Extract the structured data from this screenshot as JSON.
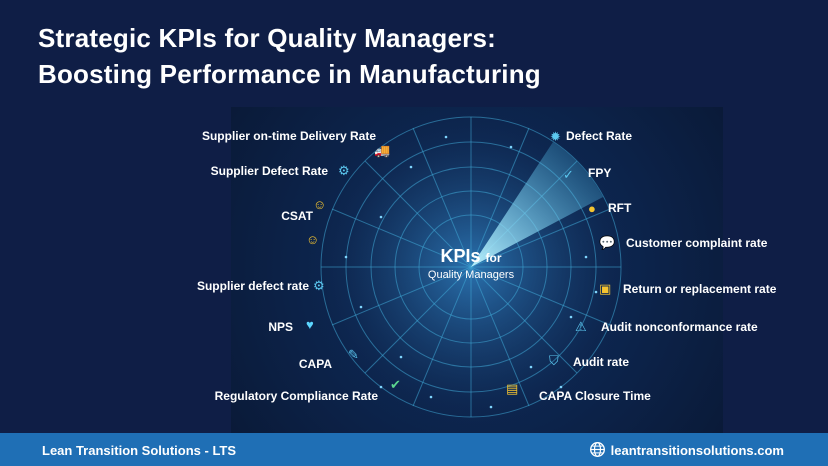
{
  "title": {
    "line1": "Strategic KPIs for Quality Managers:",
    "line2": "Boosting Performance in Manufacturing"
  },
  "center": {
    "line1": "KPIs",
    "line1b": "for",
    "line2": "Quality Managers"
  },
  "left_kpis": [
    {
      "label": "Supplier on-time Delivery Rate",
      "icon": "truck-icon"
    },
    {
      "label": "Supplier Defect Rate",
      "icon": "gear-icon"
    },
    {
      "label": "CSAT",
      "icon": "smiley-icon"
    },
    {
      "label": "Supplier defect rate",
      "icon": "gear-icon"
    },
    {
      "label": "NPS",
      "icon": "heart-icon"
    },
    {
      "label": "CAPA",
      "icon": "wrench-icon"
    },
    {
      "label": "Regulatory Compliance Rate",
      "icon": "shield-check-icon"
    }
  ],
  "right_kpis": [
    {
      "label": "Defect Rate",
      "icon": "bug-icon"
    },
    {
      "label": "FPY",
      "icon": "check-icon"
    },
    {
      "label": "RFT",
      "icon": "thumbs-up-icon"
    },
    {
      "label": "Customer complaint rate",
      "icon": "speech-bubble-icon"
    },
    {
      "label": "Return or replacement rate",
      "icon": "box-icon"
    },
    {
      "label": "Audit nonconformance rate",
      "icon": "warning-icon"
    },
    {
      "label": "Audit rate",
      "icon": "shield-check-icon"
    },
    {
      "label": "CAPA Closure Time",
      "icon": "clipboard-icon"
    }
  ],
  "footer": {
    "company": "Lean Transition Solutions - LTS",
    "website": "leantransitionsolutions.com",
    "icon": "globe-icon"
  },
  "colors": {
    "background": "#0f1e46",
    "footer": "#1f6fb5",
    "radar_line": "#3fa7d6",
    "radar_sweep": "#7fe9ff",
    "accent_yellow": "#f4c430"
  }
}
